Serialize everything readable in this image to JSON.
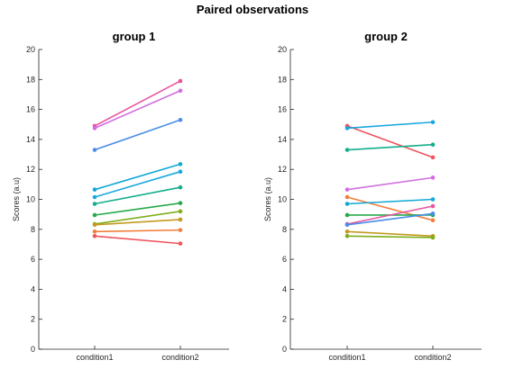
{
  "figure_title": "Paired observations",
  "chart_data": [
    {
      "type": "line",
      "title": "group 1",
      "ylabel": "Scores (a.u)",
      "xlabel": "",
      "categories": [
        "condition1",
        "condition2"
      ],
      "ylim": [
        0,
        20
      ],
      "yticks": [
        0,
        2,
        4,
        6,
        8,
        10,
        12,
        14,
        16,
        18,
        20
      ],
      "grid": false,
      "series": [
        {
          "values": [
            14.9,
            17.9
          ],
          "color": "#e8559e"
        },
        {
          "values": [
            14.75,
            17.25
          ],
          "color": "#d26ee0"
        },
        {
          "values": [
            13.3,
            15.3
          ],
          "color": "#4b8de8"
        },
        {
          "values": [
            10.65,
            12.35
          ],
          "color": "#11a8d6"
        },
        {
          "values": [
            10.15,
            11.85
          ],
          "color": "#19a8e0"
        },
        {
          "values": [
            9.7,
            10.8
          ],
          "color": "#15ad8c"
        },
        {
          "values": [
            8.95,
            9.75
          ],
          "color": "#27a84a"
        },
        {
          "values": [
            8.35,
            9.2
          ],
          "color": "#7fae1a"
        },
        {
          "values": [
            8.3,
            8.65
          ],
          "color": "#c39a1f"
        },
        {
          "values": [
            7.85,
            7.95
          ],
          "color": "#f07f3b"
        },
        {
          "values": [
            7.55,
            7.05
          ],
          "color": "#f0545e"
        }
      ]
    },
    {
      "type": "line",
      "title": "group 2",
      "ylabel": "Scores (a.u)",
      "xlabel": "",
      "categories": [
        "condition1",
        "condition2"
      ],
      "ylim": [
        0,
        20
      ],
      "yticks": [
        0,
        2,
        4,
        6,
        8,
        10,
        12,
        14,
        16,
        18,
        20
      ],
      "grid": false,
      "series": [
        {
          "values": [
            14.9,
            12.8
          ],
          "color": "#f0545e"
        },
        {
          "values": [
            14.75,
            15.15
          ],
          "color": "#19a8e0"
        },
        {
          "values": [
            13.3,
            13.65
          ],
          "color": "#15ad8c"
        },
        {
          "values": [
            10.65,
            11.45
          ],
          "color": "#d26ee0"
        },
        {
          "values": [
            10.15,
            8.6
          ],
          "color": "#f07f3b"
        },
        {
          "values": [
            9.7,
            10.0
          ],
          "color": "#11a8d6"
        },
        {
          "values": [
            8.95,
            8.95
          ],
          "color": "#27a84a"
        },
        {
          "values": [
            8.35,
            9.55
          ],
          "color": "#e8559e"
        },
        {
          "values": [
            8.3,
            9.05
          ],
          "color": "#4b8de8"
        },
        {
          "values": [
            7.85,
            7.55
          ],
          "color": "#c39a1f"
        },
        {
          "values": [
            7.55,
            7.45
          ],
          "color": "#7fae1a"
        }
      ]
    }
  ]
}
